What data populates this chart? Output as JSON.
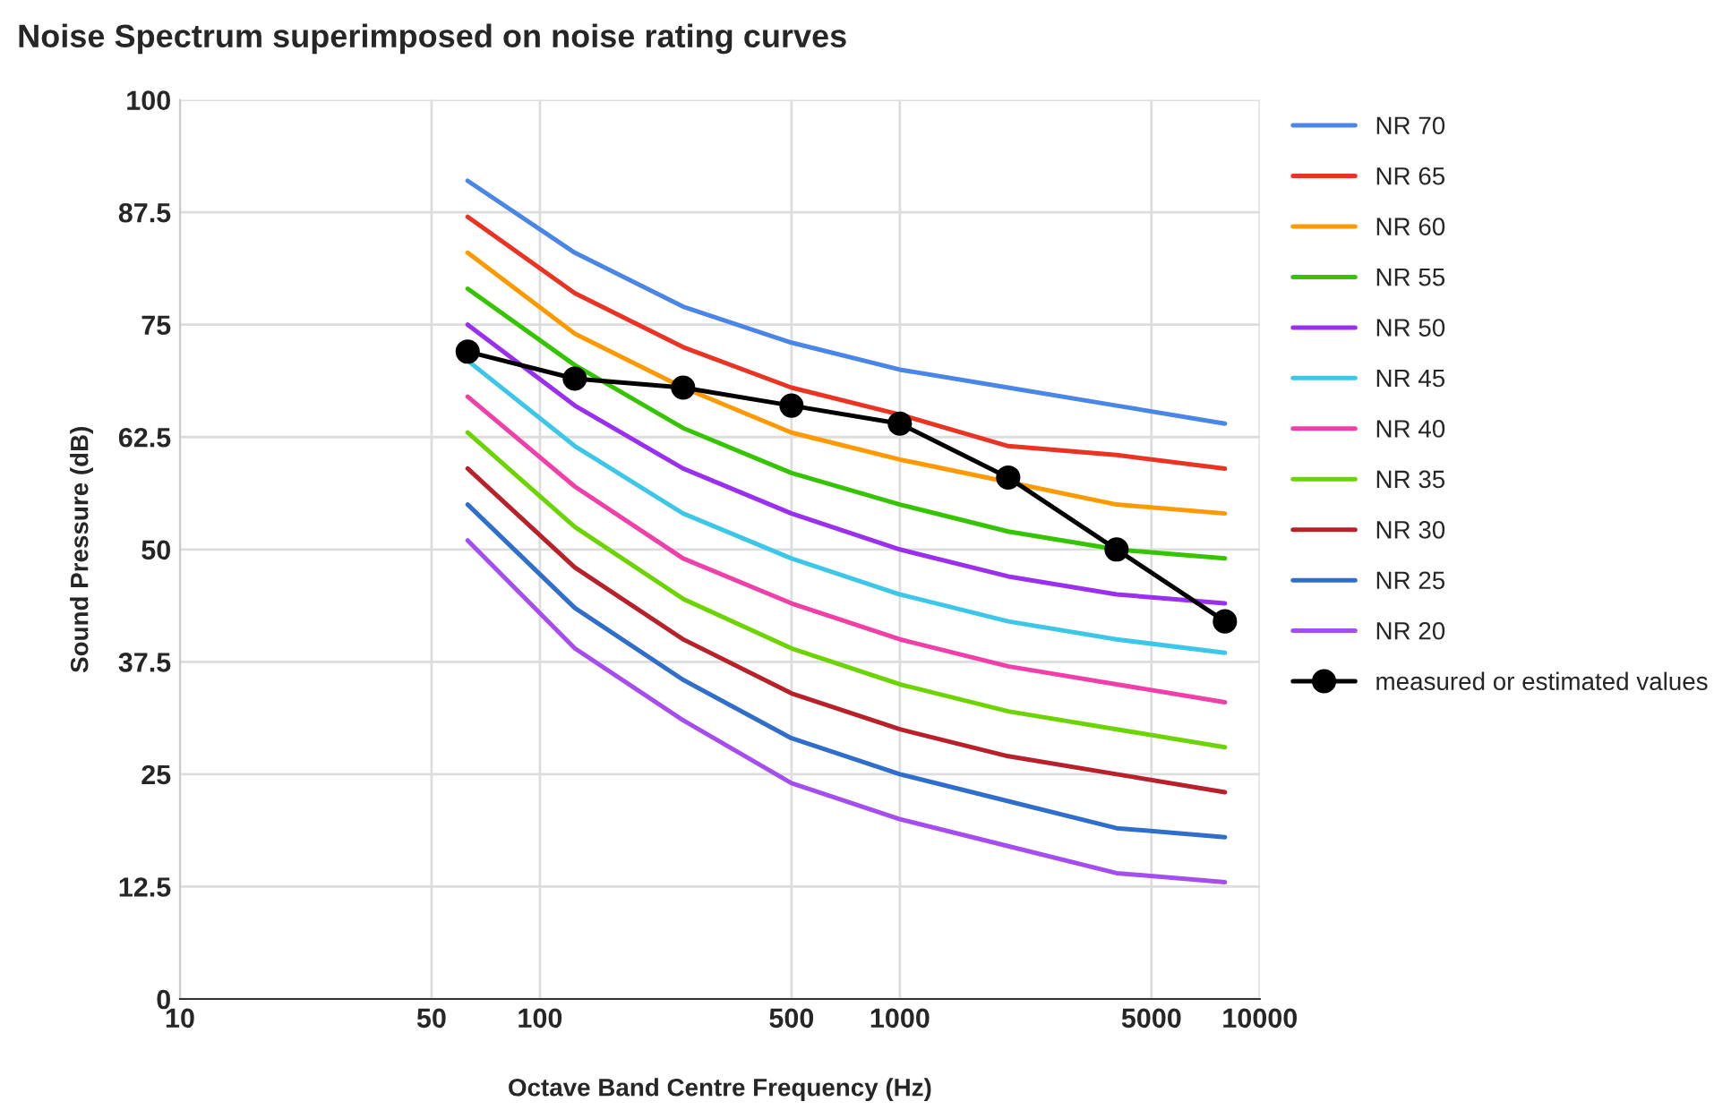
{
  "chart_data": {
    "type": "line",
    "title": "Noise Spectrum superimposed on noise rating curves",
    "xlabel": "Octave Band Centre Frequency (Hz)",
    "ylabel": "Sound Pressure (dB)",
    "x": [
      63,
      125,
      250,
      500,
      1000,
      2000,
      4000,
      8000
    ],
    "log": "x",
    "xlim": [
      10,
      10000
    ],
    "xticks": [
      10,
      50,
      100,
      500,
      1000,
      5000,
      10000
    ],
    "ylim": [
      0,
      100
    ],
    "yticks": [
      0,
      12.5,
      25,
      37.5,
      50,
      62.5,
      75,
      87.5,
      100
    ],
    "grid": true,
    "legend": "right",
    "marker": "none",
    "line_style": "solid",
    "series": [
      {
        "name": "NR 70",
        "color": "#4a86e8",
        "values": [
          91,
          83,
          77,
          73,
          70,
          68,
          66,
          64
        ]
      },
      {
        "name": "NR 65",
        "color": "#ea3323",
        "values": [
          87,
          78.5,
          72.5,
          68,
          65,
          61.5,
          60.5,
          59
        ]
      },
      {
        "name": "NR 60",
        "color": "#ff9900",
        "values": [
          83,
          74,
          68,
          63,
          60,
          57.5,
          55,
          54
        ]
      },
      {
        "name": "NR 55",
        "color": "#34c400",
        "values": [
          79,
          70.5,
          63.5,
          58.5,
          55,
          52,
          50,
          49
        ]
      },
      {
        "name": "NR 50",
        "color": "#9a2ff0",
        "values": [
          75,
          66,
          59,
          54,
          50,
          47,
          45,
          44
        ]
      },
      {
        "name": "NR 45",
        "color": "#3cc7e8",
        "values": [
          71,
          61.5,
          54,
          49,
          45,
          42,
          40,
          38.5
        ]
      },
      {
        "name": "NR 40",
        "color": "#f03fa8",
        "values": [
          67,
          57,
          49,
          44,
          40,
          37,
          35,
          33
        ]
      },
      {
        "name": "NR 35",
        "color": "#6cd400",
        "values": [
          63,
          52.5,
          44.5,
          39,
          35,
          32,
          30,
          28
        ]
      },
      {
        "name": "NR 30",
        "color": "#b8202a",
        "values": [
          59,
          48,
          40,
          34,
          30,
          27,
          25,
          23
        ]
      },
      {
        "name": "NR 25",
        "color": "#2f6fcb",
        "values": [
          55,
          43.5,
          35.5,
          29,
          25,
          22,
          19,
          18
        ]
      },
      {
        "name": "NR 20",
        "color": "#a64df0",
        "values": [
          51,
          39,
          31,
          24,
          20,
          17,
          14,
          13
        ]
      },
      {
        "name": "measured or estimated values",
        "color": "#000000",
        "marker": "circle",
        "values": [
          72,
          69,
          68,
          66,
          64,
          58,
          50,
          42
        ]
      }
    ]
  }
}
